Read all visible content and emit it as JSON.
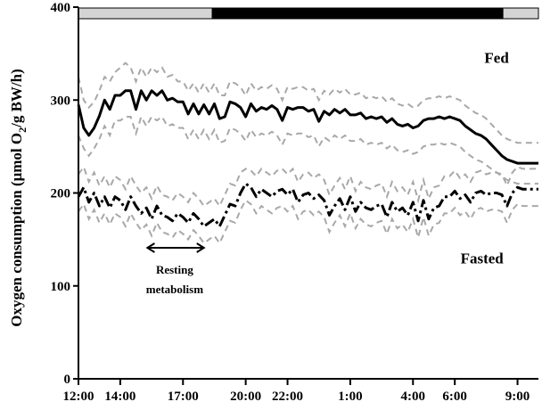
{
  "chart_data": {
    "type": "line",
    "title": "",
    "xlabel": "",
    "ylabel": "Oxygen consumption (μmol O2/g BW/h)",
    "ylabel_parts": {
      "before_sub": "Oxygen consumption (μmol O",
      "sub": "2",
      "after_sub": "/g BW/h)"
    },
    "ylim": [
      0,
      400
    ],
    "yticks": [
      0,
      100,
      200,
      300,
      400
    ],
    "xlim": [
      12,
      34
    ],
    "x_tick_values": [
      12,
      14,
      17,
      20,
      22,
      25,
      28,
      30,
      33
    ],
    "x_tick_labels": [
      "12:00",
      "14:00",
      "17:00",
      "20:00",
      "22:00",
      "1:00",
      "4:00",
      "6:00",
      "9:00"
    ],
    "grid": false,
    "light_dark_bar": [
      {
        "phase": "light",
        "from": 12,
        "to": 18.4
      },
      {
        "phase": "dark",
        "from": 18.4,
        "to": 32.3
      },
      {
        "phase": "light",
        "from": 32.3,
        "to": 34
      }
    ],
    "series_labels": [
      {
        "text": "Fed",
        "series": "fed",
        "x": 32,
        "y": 340
      },
      {
        "text": "Fasted",
        "series": "fasted",
        "x": 31.3,
        "y": 124
      }
    ],
    "annotation": {
      "lines": [
        "Resting",
        "metabolism"
      ],
      "arrow_from": 15.3,
      "arrow_to": 18.0,
      "arrow_y": 141,
      "text_x": 16.6,
      "text_y": [
        113,
        92
      ]
    },
    "series": [
      {
        "id": "fed",
        "style": "solid",
        "color": "#000000",
        "x": [
          12,
          12.25,
          12.5,
          12.75,
          13,
          13.25,
          13.5,
          13.75,
          14,
          14.25,
          14.5,
          14.75,
          15,
          15.25,
          15.5,
          15.75,
          16,
          16.25,
          16.5,
          16.75,
          17,
          17.25,
          17.5,
          17.75,
          18,
          18.25,
          18.5,
          18.75,
          19,
          19.25,
          19.5,
          19.75,
          20,
          20.25,
          20.5,
          20.75,
          21,
          21.25,
          21.5,
          21.75,
          22,
          22.25,
          22.5,
          22.75,
          23,
          23.25,
          23.5,
          23.75,
          24,
          24.25,
          24.5,
          24.75,
          25,
          25.25,
          25.5,
          25.75,
          26,
          26.25,
          26.5,
          26.75,
          27,
          27.25,
          27.5,
          27.75,
          28,
          28.25,
          28.5,
          28.75,
          29,
          29.25,
          29.5,
          29.75,
          30,
          30.25,
          30.5,
          30.75,
          31,
          31.25,
          31.5,
          31.75,
          32,
          32.25,
          32.5,
          32.75,
          33,
          33.25,
          33.5,
          33.75,
          34
        ],
        "values": [
          295,
          270,
          262,
          270,
          283,
          300,
          290,
          305,
          305,
          310,
          310,
          290,
          310,
          300,
          310,
          305,
          310,
          300,
          302,
          298,
          298,
          285,
          296,
          285,
          295,
          285,
          296,
          280,
          282,
          298,
          296,
          292,
          282,
          296,
          288,
          292,
          290,
          294,
          290,
          278,
          292,
          290,
          292,
          292,
          288,
          290,
          277,
          288,
          284,
          290,
          286,
          290,
          284,
          284,
          286,
          280,
          282,
          280,
          282,
          276,
          280,
          274,
          272,
          274,
          270,
          272,
          278,
          280,
          280,
          282,
          280,
          282,
          280,
          278,
          272,
          268,
          264,
          262,
          258,
          252,
          246,
          240,
          236,
          234,
          232,
          232,
          232,
          232,
          232
        ],
        "band_upper": [
          325,
          300,
          292,
          298,
          310,
          325,
          320,
          330,
          335,
          340,
          335,
          320,
          335,
          325,
          335,
          330,
          335,
          325,
          327,
          320,
          320,
          310,
          318,
          308,
          318,
          308,
          318,
          305,
          305,
          320,
          318,
          314,
          305,
          318,
          310,
          314,
          312,
          316,
          312,
          300,
          314,
          312,
          314,
          314,
          310,
          312,
          300,
          310,
          306,
          312,
          308,
          312,
          306,
          306,
          308,
          302,
          304,
          302,
          304,
          298,
          302,
          296,
          294,
          296,
          292,
          294,
          300,
          302,
          302,
          304,
          302,
          304,
          302,
          300,
          294,
          290,
          286,
          284,
          280,
          274,
          268,
          262,
          258,
          256,
          254,
          254,
          254,
          254,
          254
        ],
        "band_lower": [
          262,
          248,
          240,
          248,
          258,
          272,
          262,
          278,
          278,
          282,
          282,
          264,
          282,
          272,
          282,
          278,
          282,
          272,
          274,
          270,
          270,
          258,
          268,
          258,
          268,
          258,
          268,
          254,
          256,
          270,
          268,
          264,
          256,
          268,
          260,
          264,
          262,
          266,
          262,
          252,
          264,
          262,
          264,
          264,
          260,
          262,
          250,
          260,
          256,
          262,
          258,
          262,
          256,
          256,
          258,
          252,
          254,
          252,
          254,
          248,
          252,
          246,
          244,
          246,
          242,
          244,
          250,
          252,
          252,
          254,
          252,
          254,
          252,
          250,
          244,
          240,
          236,
          234,
          230,
          226,
          222,
          218,
          214,
          212,
          210,
          210,
          210,
          210,
          210
        ]
      },
      {
        "id": "fasted",
        "style": "dashdot",
        "color": "#000000",
        "x": [
          12,
          12.25,
          12.5,
          12.75,
          13,
          13.25,
          13.5,
          13.75,
          14,
          14.25,
          14.5,
          14.75,
          15,
          15.25,
          15.5,
          15.75,
          16,
          16.25,
          16.5,
          16.75,
          17,
          17.25,
          17.5,
          17.75,
          18,
          18.25,
          18.5,
          18.75,
          19,
          19.25,
          19.5,
          19.75,
          20,
          20.25,
          20.5,
          20.75,
          21,
          21.25,
          21.5,
          21.75,
          22,
          22.25,
          22.5,
          22.75,
          23,
          23.25,
          23.5,
          23.75,
          24,
          24.25,
          24.5,
          24.75,
          25,
          25.25,
          25.5,
          25.75,
          26,
          26.25,
          26.5,
          26.75,
          27,
          27.25,
          27.5,
          27.75,
          28,
          28.25,
          28.5,
          28.75,
          29,
          29.25,
          29.5,
          29.75,
          30,
          30.25,
          30.5,
          30.75,
          31,
          31.25,
          31.5,
          31.75,
          32,
          32.25,
          32.5,
          32.75,
          33,
          33.25,
          33.5,
          33.75,
          34
        ],
        "values": [
          196,
          206,
          190,
          200,
          186,
          196,
          184,
          196,
          192,
          182,
          196,
          186,
          178,
          184,
          172,
          186,
          176,
          174,
          170,
          178,
          174,
          168,
          178,
          172,
          164,
          168,
          172,
          164,
          176,
          188,
          186,
          200,
          210,
          206,
          196,
          204,
          200,
          196,
          202,
          204,
          198,
          204,
          190,
          198,
          200,
          194,
          198,
          192,
          176,
          186,
          194,
          182,
          196,
          180,
          190,
          184,
          182,
          186,
          188,
          174,
          190,
          180,
          184,
          176,
          190,
          170,
          192,
          172,
          184,
          186,
          196,
          196,
          202,
          194,
          198,
          190,
          200,
          202,
          198,
          200,
          200,
          198,
          186,
          200,
          206,
          204,
          204,
          204,
          204
        ],
        "band_upper": [
          220,
          228,
          212,
          222,
          208,
          218,
          206,
          218,
          214,
          204,
          218,
          208,
          200,
          206,
          194,
          208,
          198,
          196,
          192,
          200,
          196,
          190,
          200,
          194,
          186,
          190,
          194,
          186,
          198,
          210,
          208,
          222,
          226,
          224,
          218,
          226,
          222,
          218,
          224,
          226,
          220,
          226,
          212,
          220,
          222,
          216,
          220,
          214,
          198,
          208,
          216,
          204,
          218,
          202,
          212,
          206,
          204,
          208,
          210,
          196,
          212,
          202,
          206,
          198,
          212,
          192,
          214,
          194,
          206,
          208,
          218,
          218,
          224,
          216,
          220,
          212,
          222,
          224,
          220,
          222,
          222,
          220,
          208,
          222,
          228,
          226,
          226,
          226,
          226
        ],
        "band_lower": [
          180,
          188,
          172,
          182,
          168,
          178,
          166,
          178,
          174,
          164,
          178,
          168,
          160,
          166,
          154,
          168,
          158,
          156,
          152,
          160,
          156,
          150,
          160,
          154,
          146,
          150,
          154,
          146,
          158,
          170,
          168,
          182,
          192,
          188,
          178,
          186,
          182,
          178,
          184,
          186,
          180,
          186,
          172,
          180,
          182,
          176,
          180,
          174,
          158,
          168,
          176,
          164,
          178,
          162,
          172,
          166,
          164,
          168,
          170,
          156,
          172,
          162,
          166,
          158,
          172,
          152,
          174,
          154,
          166,
          168,
          178,
          178,
          184,
          176,
          180,
          172,
          182,
          184,
          180,
          182,
          182,
          180,
          168,
          182,
          188,
          186,
          186,
          186,
          186
        ]
      }
    ]
  }
}
